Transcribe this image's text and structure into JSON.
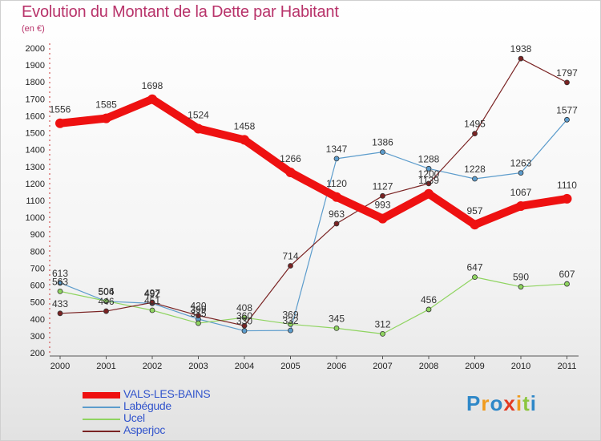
{
  "title": "Evolution du Montant de la Dette par Habitant",
  "subtitle": "(en €)",
  "brand": {
    "text": "Proxiti",
    "letter_colors": [
      "#2f88c8",
      "#f09a1c",
      "#2f88c8",
      "#e23a22",
      "#f09a1c",
      "#8cc63e",
      "#2f88c8"
    ]
  },
  "chart_data": {
    "type": "line",
    "title": "Evolution du Montant de la Dette par Habitant",
    "subtitle": "(en €)",
    "xlabel": "",
    "ylabel": "",
    "x": [
      "2000",
      "2001",
      "2002",
      "2003",
      "2004",
      "2005",
      "2006",
      "2007",
      "2008",
      "2009",
      "2010",
      "2011"
    ],
    "ylim": [
      200,
      2000
    ],
    "yticks": [
      200,
      300,
      400,
      500,
      600,
      700,
      800,
      900,
      1000,
      1100,
      1200,
      1300,
      1400,
      1500,
      1600,
      1700,
      1800,
      1900,
      2000
    ],
    "grid": false,
    "legend": "bottom-left",
    "series": [
      {
        "name": "VALS-LES-BAINS",
        "color": "#ee1111",
        "emphasis": true,
        "values": [
          1556,
          1585,
          1698,
          1524,
          1458,
          1266,
          1120,
          993,
          1139,
          957,
          1067,
          1110
        ]
      },
      {
        "name": "Labégude",
        "color": "#5c9ccc",
        "emphasis": false,
        "values": [
          613,
          504,
          492,
          399,
          330,
          332,
          1347,
          1386,
          1288,
          1228,
          1263,
          1577
        ]
      },
      {
        "name": "Ucel",
        "color": "#8fd460",
        "emphasis": false,
        "values": [
          563,
          506,
          451,
          375,
          408,
          369,
          345,
          312,
          456,
          647,
          590,
          607
        ]
      },
      {
        "name": "Asperjoc",
        "color": "#7a2323",
        "emphasis": false,
        "values": [
          433,
          446,
          497,
          420,
          360,
          714,
          963,
          1127,
          1200,
          1495,
          1938,
          1797
        ]
      }
    ]
  }
}
